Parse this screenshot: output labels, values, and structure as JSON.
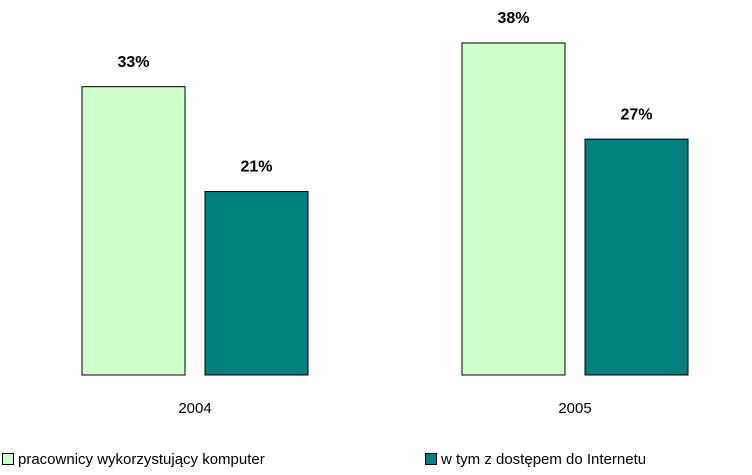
{
  "chart_data": {
    "type": "bar",
    "categories": [
      "2004",
      "2005"
    ],
    "series": [
      {
        "name": "pracownicy wykorzystujący komputer",
        "color": "#ccffcc",
        "values": [
          33,
          38
        ],
        "value_labels": [
          "33%",
          "38%"
        ]
      },
      {
        "name": "w tym z dostępem do Internetu",
        "color": "#008080",
        "values": [
          21,
          27
        ],
        "value_labels": [
          "21%",
          "27%"
        ]
      }
    ]
  }
}
